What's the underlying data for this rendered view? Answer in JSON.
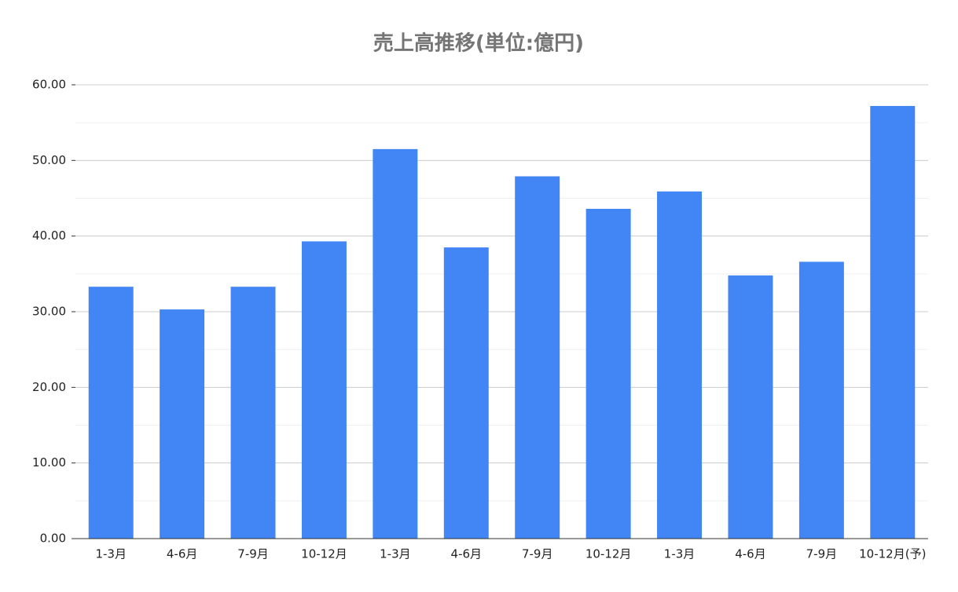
{
  "chart_data": {
    "type": "bar",
    "title": "売上高推移(単位:億円)",
    "categories": [
      "1-3月",
      "4-6月",
      "7-9月",
      "10-12月",
      "1-3月",
      "4-6月",
      "7-9月",
      "10-12月",
      "1-3月",
      "4-6月",
      "7-9月",
      "10-12月(予)"
    ],
    "values": [
      33.3,
      30.3,
      33.3,
      39.3,
      51.5,
      38.5,
      47.9,
      43.6,
      45.9,
      34.8,
      36.6,
      57.2
    ],
    "color": "#4285f4",
    "ylim": [
      0,
      60
    ],
    "yticks": [
      {
        "value": 0,
        "label": "0.00"
      },
      {
        "value": 10,
        "label": "10.00"
      },
      {
        "value": 20,
        "label": "20.00"
      },
      {
        "value": 30,
        "label": "30.00"
      },
      {
        "value": 40,
        "label": "40.00"
      },
      {
        "value": 50,
        "label": "50.00"
      },
      {
        "value": 60,
        "label": "60.00"
      }
    ],
    "minor_yticks": [
      5,
      15,
      25,
      35,
      45,
      55
    ],
    "grid": true
  }
}
